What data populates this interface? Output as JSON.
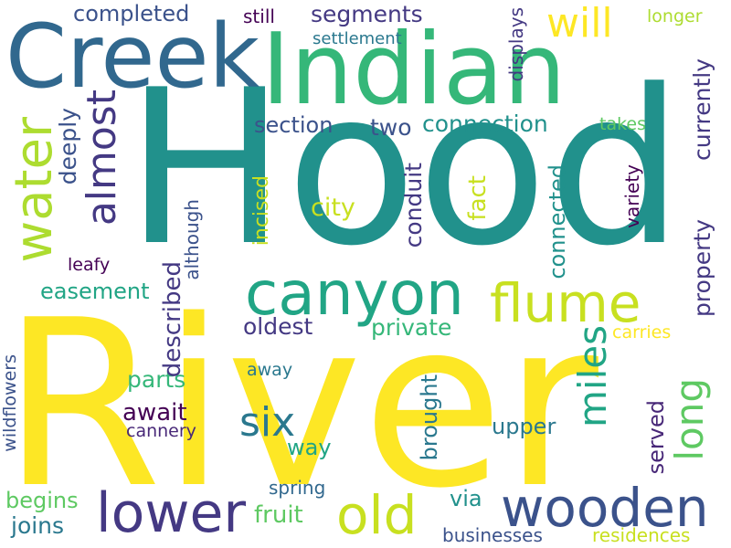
{
  "words": {
    "hood": "Hood",
    "river": "River",
    "indian": "Indian",
    "creek": "Creek",
    "water": "water",
    "canyon": "canyon",
    "flume": "flume",
    "wooden": "wooden",
    "lower": "lower",
    "old": "old",
    "almost": "almost",
    "will": "will",
    "six": "six",
    "miles": "miles",
    "long": "long",
    "connection": "connection",
    "section": "section",
    "two": "two",
    "segments": "segments",
    "completed": "completed",
    "still": "still",
    "settlement": "settlement",
    "displays": "displays",
    "longer": "longer",
    "currently": "currently",
    "property": "property",
    "takes": "takes",
    "deeply": "deeply",
    "incised": "incised",
    "city": "city",
    "conduit": "conduit",
    "fact": "fact",
    "connected": "connected",
    "variety": "variety",
    "although": "although",
    "leafy": "leafy",
    "easement": "easement",
    "described": "described",
    "oldest": "oldest",
    "private": "private",
    "carries": "carries",
    "parts": "parts",
    "away": "away",
    "await": "await",
    "cannery": "cannery",
    "way": "way",
    "upper": "upper",
    "served": "served",
    "brought": "brought",
    "wildflowers": "wildflowers",
    "spring": "spring",
    "fruit": "fruit",
    "via": "via",
    "begins": "begins",
    "joins": "joins",
    "businesses": "businesses",
    "residences": "residences"
  },
  "palette": {
    "background": "#ffffff",
    "yellow": "#fde725",
    "yellow_green": "#c8e020",
    "light_green": "#addc30",
    "green": "#5ec962",
    "mid_green": "#35b779",
    "teal_green": "#21a585",
    "teal": "#21918c",
    "blue_teal": "#2a788e",
    "blue": "#31688e",
    "indigo": "#3b528b",
    "purple": "#443983",
    "dark_purple": "#482878",
    "deep_purple": "#440154"
  }
}
